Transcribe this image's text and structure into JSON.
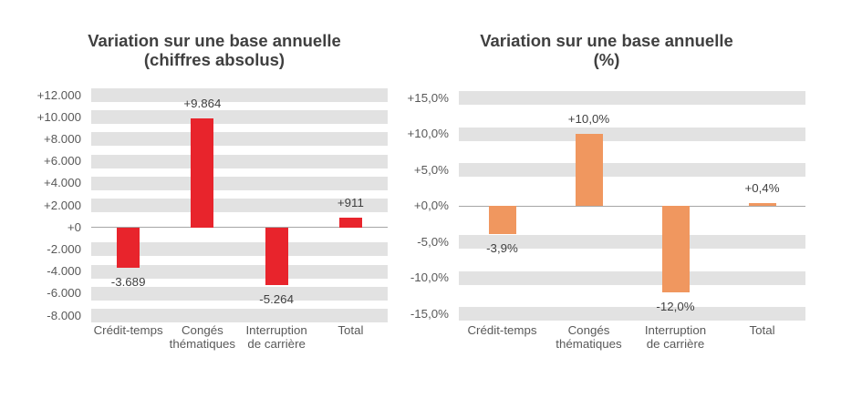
{
  "colors": {
    "background": "#ffffff",
    "grid_band": "#e2e2e2",
    "zero_line": "#a6a6a6",
    "axis_label": "#595959",
    "data_label": "#404040",
    "title": "#404040",
    "red_bars": "#e8242c",
    "orange_bars": "#f0975f"
  },
  "chart_data": [
    {
      "type": "bar",
      "title": "Variation sur une base annuelle (chiffres absolus)",
      "title_line1": "Variation sur une base annuelle",
      "title_line2": "(chiffres absolus)",
      "categories": [
        "Crédit-temps",
        "Congés thématiques",
        "Interruption de carrière",
        "Total"
      ],
      "category_display": [
        "Crédit-temps",
        "Congés\nthématiques",
        "Interruption\nde carrière",
        "Total"
      ],
      "values": [
        -3689,
        9864,
        -5264,
        911
      ],
      "value_labels": [
        "-3.689",
        "+9.864",
        "-5.264",
        "+911"
      ],
      "y_tick_labels": [
        "+12.000",
        "+10.000",
        "+8.000",
        "+6.000",
        "+4.000",
        "+2.000",
        "+0",
        "-2.000",
        "-4.000",
        "-6.000",
        "-8.000"
      ],
      "y_tick_values": [
        12000,
        10000,
        8000,
        6000,
        4000,
        2000,
        0,
        -2000,
        -4000,
        -6000,
        -8000
      ],
      "ylim": [
        -8000,
        12000
      ],
      "tick_step": 2000,
      "bar_color": "#e8242c",
      "grid": "banded-horizontal",
      "legend": "none",
      "xlabel": "",
      "ylabel": ""
    },
    {
      "type": "bar",
      "title": "Variation sur une base annuelle (%)",
      "title_line1": "Variation sur une base annuelle",
      "title_line2": "(%)",
      "categories": [
        "Crédit-temps",
        "Congés thématiques",
        "Interruption de carrière",
        "Total"
      ],
      "category_display": [
        "Crédit-temps",
        "Congés\nthématiques",
        "Interruption\nde carrière",
        "Total"
      ],
      "values": [
        -3.9,
        10.0,
        -12.0,
        0.4
      ],
      "value_labels": [
        "-3,9%",
        "+10,0%",
        "-12,0%",
        "+0,4%"
      ],
      "y_tick_labels": [
        "+15,0%",
        "+10,0%",
        "+5,0%",
        "+0,0%",
        "-5,0%",
        "-10,0%",
        "-15,0%"
      ],
      "y_tick_values": [
        15,
        10,
        5,
        0,
        -5,
        -10,
        -15
      ],
      "ylim": [
        -15,
        15
      ],
      "tick_step": 5,
      "bar_color": "#f0975f",
      "grid": "banded-horizontal",
      "legend": "none",
      "xlabel": "",
      "ylabel": ""
    }
  ]
}
